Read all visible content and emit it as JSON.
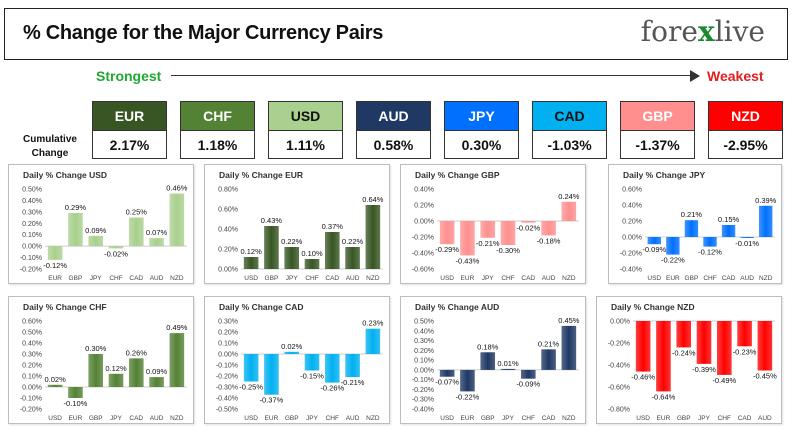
{
  "header": {
    "title": "% Change for the Major Currency Pairs",
    "logo_prefix": "fore",
    "logo_mark": "x",
    "logo_suffix": "live"
  },
  "scale": {
    "strongest": "Strongest",
    "weakest": "Weakest"
  },
  "cumulative_label": "Cumulative Change",
  "currencies": [
    {
      "name": "EUR",
      "value": "2.17%",
      "color": "#375623",
      "text_color": "#ffffff"
    },
    {
      "name": "CHF",
      "value": "1.18%",
      "color": "#548235",
      "text_color": "#ffffff"
    },
    {
      "name": "USD",
      "value": "1.11%",
      "color": "#a9d08e",
      "text_color": "#111111"
    },
    {
      "name": "AUD",
      "value": "0.58%",
      "color": "#1f3864",
      "text_color": "#ffffff"
    },
    {
      "name": "JPY",
      "value": "0.30%",
      "color": "#0070ff",
      "text_color": "#ffffff"
    },
    {
      "name": "CAD",
      "value": "-1.03%",
      "color": "#00b0f0",
      "text_color": "#111111"
    },
    {
      "name": "GBP",
      "value": "-1.37%",
      "color": "#ff8f8f",
      "text_color": "#ffffff"
    },
    {
      "name": "NZD",
      "value": "-2.95%",
      "color": "#ff0000",
      "text_color": "#ffffff"
    }
  ],
  "chart_data": [
    {
      "type": "bar",
      "title": "Daily % Change USD",
      "color": "#a9d08e",
      "categories": [
        "EUR",
        "GBP",
        "JPY",
        "CHF",
        "CAD",
        "AUD",
        "NZD"
      ],
      "values": [
        -0.12,
        0.29,
        0.09,
        -0.02,
        0.25,
        0.07,
        0.46
      ],
      "labels": [
        "-0.12%",
        "0.29%",
        "0.09%",
        "-0.02%",
        "0.25%",
        "0.07%",
        "0.46%"
      ],
      "yticks": [
        "-0.20%",
        "-0.10%",
        "0.00%",
        "0.10%",
        "0.20%",
        "0.30%",
        "0.40%",
        "0.50%"
      ],
      "ylim": [
        -0.2,
        0.5
      ]
    },
    {
      "type": "bar",
      "title": "Daily % Change EUR",
      "color": "#375623",
      "categories": [
        "USD",
        "GBP",
        "JPY",
        "CHF",
        "CAD",
        "AUD",
        "NZD"
      ],
      "values": [
        0.12,
        0.43,
        0.22,
        0.1,
        0.37,
        0.22,
        0.64
      ],
      "labels": [
        "0.12%",
        "0.43%",
        "0.22%",
        "0.10%",
        "0.37%",
        "0.22%",
        "0.64%"
      ],
      "yticks": [
        "0.00%",
        "0.20%",
        "0.40%",
        "0.60%",
        "0.80%"
      ],
      "ylim": [
        0,
        0.8
      ]
    },
    {
      "type": "bar",
      "title": "Daily % Change GBP",
      "color": "#ff8f8f",
      "categories": [
        "USD",
        "EUR",
        "JPY",
        "CHF",
        "CAD",
        "AUD",
        "NZD"
      ],
      "values": [
        -0.29,
        -0.43,
        -0.21,
        -0.3,
        -0.02,
        -0.18,
        0.24
      ],
      "labels": [
        "-0.29%",
        "-0.43%",
        "-0.21%",
        "-0.30%",
        "-0.02%",
        "-0.18%",
        "0.24%"
      ],
      "yticks": [
        "-0.60%",
        "-0.40%",
        "-0.20%",
        "0.00%",
        "0.20%",
        "0.40%"
      ],
      "ylim": [
        -0.6,
        0.4
      ]
    },
    {
      "type": "bar",
      "title": "Daily % Change JPY",
      "color": "#0070ff",
      "categories": [
        "USD",
        "EUR",
        "GBP",
        "CHF",
        "CAD",
        "AUD",
        "NZD"
      ],
      "values": [
        -0.09,
        -0.22,
        0.21,
        -0.12,
        0.15,
        -0.01,
        0.39
      ],
      "labels": [
        "-0.09%",
        "-0.22%",
        "0.21%",
        "-0.12%",
        "0.15%",
        "-0.01%",
        "0.39%"
      ],
      "yticks": [
        "-0.40%",
        "-0.20%",
        "0.00%",
        "0.20%",
        "0.40%",
        "0.60%"
      ],
      "ylim": [
        -0.4,
        0.6
      ]
    },
    {
      "type": "bar",
      "title": "Daily % Change CHF",
      "color": "#548235",
      "categories": [
        "USD",
        "EUR",
        "GBP",
        "JPY",
        "CAD",
        "AUD",
        "NZD"
      ],
      "values": [
        0.02,
        -0.1,
        0.3,
        0.12,
        0.26,
        0.09,
        0.49
      ],
      "labels": [
        "0.02%",
        "-0.10%",
        "0.30%",
        "0.12%",
        "0.26%",
        "0.09%",
        "0.49%"
      ],
      "yticks": [
        "-0.20%",
        "-0.10%",
        "0.00%",
        "0.10%",
        "0.20%",
        "0.30%",
        "0.40%",
        "0.50%",
        "0.60%"
      ],
      "ylim": [
        -0.2,
        0.6
      ]
    },
    {
      "type": "bar",
      "title": "Daily % Change CAD",
      "color": "#00b0f0",
      "categories": [
        "USD",
        "EUR",
        "GBP",
        "JPY",
        "CHF",
        "AUD",
        "NZD"
      ],
      "values": [
        -0.25,
        -0.37,
        0.02,
        -0.15,
        -0.26,
        -0.21,
        0.23
      ],
      "labels": [
        "-0.25%",
        "-0.37%",
        "0.02%",
        "-0.15%",
        "-0.26%",
        "-0.21%",
        "0.23%"
      ],
      "yticks": [
        "-0.50%",
        "-0.40%",
        "-0.30%",
        "-0.20%",
        "-0.10%",
        "0.00%",
        "0.10%",
        "0.20%",
        "0.30%"
      ],
      "ylim": [
        -0.5,
        0.3
      ]
    },
    {
      "type": "bar",
      "title": "Daily % Change AUD",
      "color": "#1f3864",
      "categories": [
        "USD",
        "EUR",
        "GBP",
        "JPY",
        "CHF",
        "CAD",
        "NZD"
      ],
      "values": [
        -0.07,
        -0.22,
        0.18,
        0.01,
        -0.09,
        0.21,
        0.45
      ],
      "labels": [
        "-0.07%",
        "-0.22%",
        "0.18%",
        "0.01%",
        "-0.09%",
        "0.21%",
        "0.45%"
      ],
      "yticks": [
        "-0.40%",
        "-0.30%",
        "-0.20%",
        "-0.10%",
        "0.00%",
        "0.10%",
        "0.20%",
        "0.30%",
        "0.40%",
        "0.50%"
      ],
      "ylim": [
        -0.4,
        0.5
      ]
    },
    {
      "type": "bar",
      "title": "Daily % Change NZD",
      "color": "#ff0000",
      "categories": [
        "USD",
        "EUR",
        "GBP",
        "JPY",
        "CHF",
        "CAD",
        "AUD"
      ],
      "values": [
        -0.46,
        -0.64,
        -0.24,
        -0.39,
        -0.49,
        -0.23,
        -0.45
      ],
      "labels": [
        "-0.46%",
        "-0.64%",
        "-0.24%",
        "-0.39%",
        "-0.49%",
        "-0.23%",
        "-0.45%"
      ],
      "yticks": [
        "-0.80%",
        "-0.60%",
        "-0.40%",
        "-0.20%",
        "0.00%"
      ],
      "ylim": [
        -0.8,
        0
      ]
    }
  ]
}
